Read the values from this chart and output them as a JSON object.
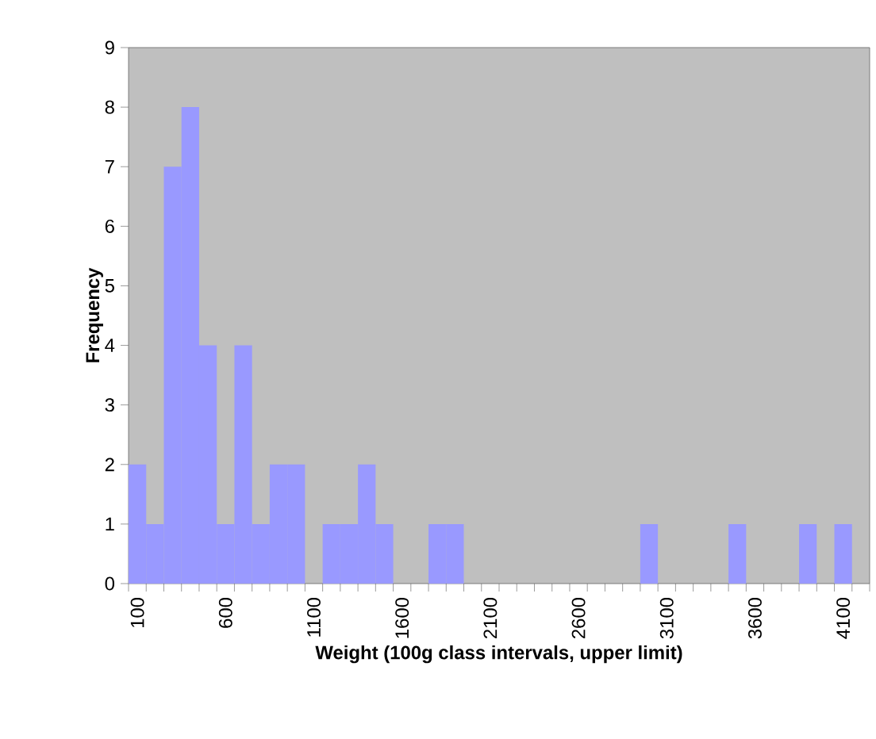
{
  "chart_data": {
    "type": "bar",
    "xlabel": "Weight (100g class intervals, upper limit)",
    "ylabel": "Frequency",
    "categories": [
      "100",
      null,
      null,
      null,
      null,
      "600",
      null,
      null,
      null,
      null,
      "1100",
      null,
      null,
      null,
      null,
      "1600",
      null,
      null,
      null,
      null,
      "2100",
      null,
      null,
      null,
      null,
      "2600",
      null,
      null,
      null,
      null,
      "3100",
      null,
      null,
      null,
      null,
      "3600",
      null,
      null,
      null,
      null,
      "4100",
      null
    ],
    "values": [
      2,
      1,
      7,
      8,
      4,
      1,
      4,
      1,
      2,
      2,
      0,
      1,
      1,
      2,
      1,
      0,
      0,
      1,
      1,
      0,
      0,
      0,
      0,
      0,
      0,
      0,
      0,
      0,
      0,
      1,
      0,
      0,
      0,
      0,
      1,
      0,
      0,
      0,
      1,
      0,
      1,
      0
    ],
    "color": "#9999ff",
    "ylim": [
      0,
      9
    ],
    "yticks": [
      0,
      1,
      2,
      3,
      4,
      5,
      6,
      7,
      8,
      9
    ]
  }
}
